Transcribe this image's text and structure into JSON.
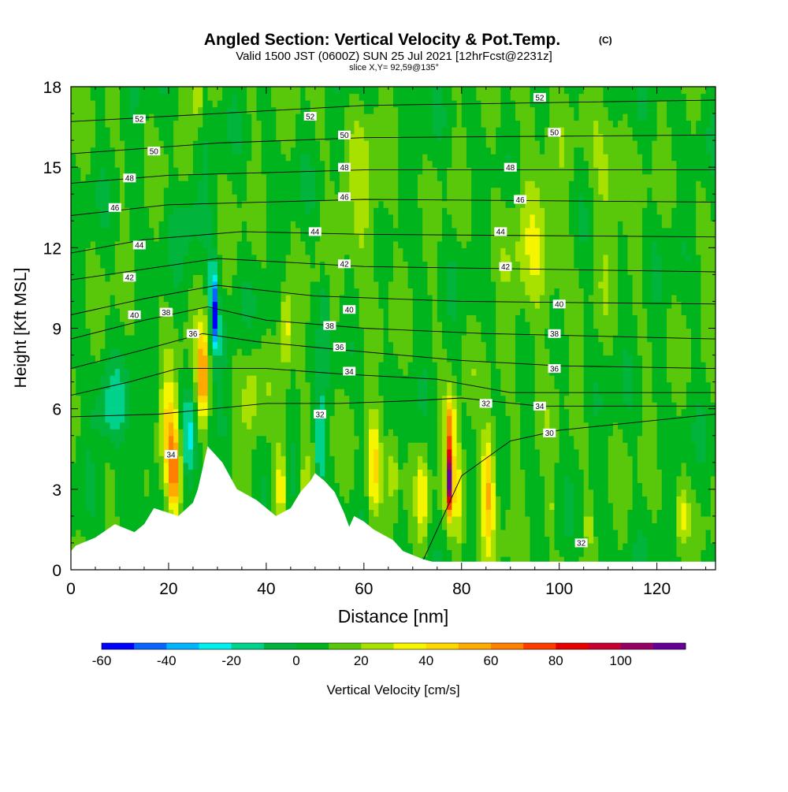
{
  "chart_data": {
    "type": "heatmap",
    "title": "Angled Section: Vertical Velocity & Pot.Temp.",
    "title_suffix": "(C)",
    "subtitle": "Valid 1500 JST (0600Z) SUN 25 Jul 2021 [12hrFcst@2231z]",
    "slice_label": "slice X,Y= 92,59@135°",
    "xlabel": "Distance [nm]",
    "ylabel": "Height [Kft MSL]",
    "xlim": [
      0,
      132
    ],
    "ylim": [
      0,
      18
    ],
    "x_ticks": [
      "0",
      "20",
      "40",
      "60",
      "80",
      "100",
      "120"
    ],
    "y_ticks": [
      "0",
      "3",
      "6",
      "9",
      "12",
      "15",
      "18"
    ],
    "grid": false,
    "colorbar": {
      "label": "Vertical Velocity [cm/s]",
      "ticks": [
        "-60",
        "-40",
        "-20",
        "0",
        "20",
        "40",
        "60",
        "80",
        "100"
      ],
      "bins": [
        {
          "from": -60,
          "to": -50,
          "color": "#0000ff"
        },
        {
          "from": -50,
          "to": -40,
          "color": "#0a64ff"
        },
        {
          "from": -40,
          "to": -30,
          "color": "#00b4ff"
        },
        {
          "from": -30,
          "to": -20,
          "color": "#00eeee"
        },
        {
          "from": -20,
          "to": -10,
          "color": "#00d28c"
        },
        {
          "from": -10,
          "to": 0,
          "color": "#00b43c"
        },
        {
          "from": 0,
          "to": 10,
          "color": "#00b41e"
        },
        {
          "from": 10,
          "to": 20,
          "color": "#5ac80a"
        },
        {
          "from": 20,
          "to": 30,
          "color": "#a8e000"
        },
        {
          "from": 30,
          "to": 40,
          "color": "#f5f500"
        },
        {
          "from": 40,
          "to": 50,
          "color": "#ffd700"
        },
        {
          "from": 50,
          "to": 60,
          "color": "#ffaa00"
        },
        {
          "from": 60,
          "to": 70,
          "color": "#ff8000"
        },
        {
          "from": 70,
          "to": 80,
          "color": "#ff3c00"
        },
        {
          "from": 80,
          "to": 90,
          "color": "#e60000"
        },
        {
          "from": 90,
          "to": 100,
          "color": "#c80032"
        },
        {
          "from": 100,
          "to": 110,
          "color": "#960064"
        },
        {
          "from": 110,
          "to": 120,
          "color": "#640096"
        }
      ]
    },
    "background_velocity": 8,
    "velocity_features": [
      {
        "x": 21,
        "z": 3.6,
        "wx": 1.4,
        "wz": 1.6,
        "v": 50
      },
      {
        "x": 20,
        "z": 5.5,
        "wx": 1.8,
        "wz": 2.0,
        "v": 30
      },
      {
        "x": 27,
        "z": 7.2,
        "wx": 1.2,
        "wz": 1.8,
        "v": 55
      },
      {
        "x": 29.5,
        "z": 9.5,
        "wx": 0.7,
        "wz": 1.0,
        "v": -55
      },
      {
        "x": 29,
        "z": 10.8,
        "wx": 0.9,
        "wz": 1.0,
        "v": -30
      },
      {
        "x": 25,
        "z": 13.2,
        "wx": 3.5,
        "wz": 1.3,
        "v": -12
      },
      {
        "x": 30,
        "z": 8.5,
        "wx": 2.5,
        "wz": 1.2,
        "v": -15
      },
      {
        "x": 24,
        "z": 5.0,
        "wx": 1.2,
        "wz": 1.5,
        "v": -25
      },
      {
        "x": 8,
        "z": 6.0,
        "wx": 3.5,
        "wz": 1.4,
        "v": -22
      },
      {
        "x": 14,
        "z": 4.2,
        "wx": 2.0,
        "wz": 1.8,
        "v": -12
      },
      {
        "x": 26,
        "z": 17.5,
        "wx": 0.8,
        "wz": 1.2,
        "v": 28
      },
      {
        "x": 43,
        "z": 3.2,
        "wx": 1.2,
        "wz": 1.6,
        "v": 32
      },
      {
        "x": 44,
        "z": 9.0,
        "wx": 1.2,
        "wz": 1.5,
        "v": 30
      },
      {
        "x": 51,
        "z": 4.6,
        "wx": 1.0,
        "wz": 2.2,
        "v": -28
      },
      {
        "x": 52,
        "z": 10.0,
        "wx": 0.8,
        "wz": 1.5,
        "v": -22
      },
      {
        "x": 48,
        "z": 3.0,
        "wx": 1.2,
        "wz": 1.5,
        "v": 22
      },
      {
        "x": 62,
        "z": 3.6,
        "wx": 1.5,
        "wz": 2.0,
        "v": 35
      },
      {
        "x": 66,
        "z": 3.8,
        "wx": 1.2,
        "wz": 1.8,
        "v": 22
      },
      {
        "x": 72,
        "z": 2.8,
        "wx": 1.0,
        "wz": 1.6,
        "v": 28
      },
      {
        "x": 77.6,
        "z": 3.4,
        "wx": 0.75,
        "wz": 1.3,
        "v": 105
      },
      {
        "x": 77.6,
        "z": 5.6,
        "wx": 1.0,
        "wz": 1.0,
        "v": 48
      },
      {
        "x": 79.5,
        "z": 3.0,
        "wx": 1.2,
        "wz": 2.2,
        "v": 28
      },
      {
        "x": 85.5,
        "z": 3.2,
        "wx": 1.5,
        "wz": 2.3,
        "v": 45
      },
      {
        "x": 98,
        "z": 2.3,
        "wx": 0.6,
        "wz": 0.9,
        "v": 25
      },
      {
        "x": 106,
        "z": 1.8,
        "wx": 0.5,
        "wz": 1.0,
        "v": 30
      },
      {
        "x": 125,
        "z": 2.0,
        "wx": 1.2,
        "wz": 1.2,
        "v": 25
      },
      {
        "x": 60,
        "z": 13.5,
        "wx": 5.0,
        "wz": 3.0,
        "v": 14
      },
      {
        "x": 95,
        "z": 12.0,
        "wx": 6.0,
        "wz": 4.0,
        "v": 15
      },
      {
        "x": 110,
        "z": 14.5,
        "wx": 3.0,
        "wz": 3.0,
        "v": 16
      },
      {
        "x": 37,
        "z": 6.5,
        "wx": 2.0,
        "wz": 2.0,
        "v": 15
      }
    ],
    "terrain_kft": [
      {
        "x": 0,
        "z": 0.7
      },
      {
        "x": 1,
        "z": 0.9
      },
      {
        "x": 5,
        "z": 1.2
      },
      {
        "x": 9,
        "z": 1.7
      },
      {
        "x": 13,
        "z": 1.4
      },
      {
        "x": 15,
        "z": 1.7
      },
      {
        "x": 16,
        "z": 2.0
      },
      {
        "x": 17,
        "z": 2.3
      },
      {
        "x": 22,
        "z": 2.0
      },
      {
        "x": 25,
        "z": 2.5
      },
      {
        "x": 26,
        "z": 3.0
      },
      {
        "x": 28,
        "z": 4.6
      },
      {
        "x": 31,
        "z": 4.0
      },
      {
        "x": 34,
        "z": 3.0
      },
      {
        "x": 38,
        "z": 2.6
      },
      {
        "x": 42,
        "z": 2.0
      },
      {
        "x": 45,
        "z": 2.3
      },
      {
        "x": 47,
        "z": 2.9
      },
      {
        "x": 49,
        "z": 3.3
      },
      {
        "x": 50,
        "z": 3.6
      },
      {
        "x": 52,
        "z": 3.3
      },
      {
        "x": 54,
        "z": 2.9
      },
      {
        "x": 56,
        "z": 2.1
      },
      {
        "x": 57,
        "z": 1.6
      },
      {
        "x": 58,
        "z": 2.0
      },
      {
        "x": 60,
        "z": 1.8
      },
      {
        "x": 62,
        "z": 1.5
      },
      {
        "x": 66,
        "z": 1.1
      },
      {
        "x": 68,
        "z": 0.7
      },
      {
        "x": 72,
        "z": 0.4
      },
      {
        "x": 74,
        "z": 0.3
      },
      {
        "x": 132,
        "z": 0.3
      }
    ],
    "isentropes": [
      {
        "label": "30",
        "points": [
          [
            72,
            0.3
          ],
          [
            80,
            3.5
          ],
          [
            90,
            4.8
          ],
          [
            100,
            5.2
          ],
          [
            132,
            5.8
          ]
        ]
      },
      {
        "label": "32",
        "points": [
          [
            0,
            5.7
          ],
          [
            18,
            5.8
          ],
          [
            40,
            6.2
          ],
          [
            55,
            6.2
          ],
          [
            70,
            6.3
          ],
          [
            80,
            6.4
          ],
          [
            96,
            6.1
          ],
          [
            132,
            6.1
          ]
        ]
      },
      {
        "label": "34",
        "points": [
          [
            0,
            6.5
          ],
          [
            12,
            7.0
          ],
          [
            22,
            7.5
          ],
          [
            40,
            7.5
          ],
          [
            55,
            7.3
          ],
          [
            75,
            7.1
          ],
          [
            90,
            6.6
          ],
          [
            132,
            6.6
          ]
        ]
      },
      {
        "label": "36",
        "points": [
          [
            0,
            7.5
          ],
          [
            15,
            8.2
          ],
          [
            27,
            8.8
          ],
          [
            38,
            8.5
          ],
          [
            55,
            8.2
          ],
          [
            80,
            7.8
          ],
          [
            100,
            7.6
          ],
          [
            132,
            7.5
          ]
        ]
      },
      {
        "label": "38",
        "points": [
          [
            0,
            8.6
          ],
          [
            15,
            9.3
          ],
          [
            28,
            9.8
          ],
          [
            40,
            9.3
          ],
          [
            60,
            9.0
          ],
          [
            85,
            8.8
          ],
          [
            132,
            8.6
          ]
        ]
      },
      {
        "label": "40",
        "points": [
          [
            0,
            9.5
          ],
          [
            15,
            10.1
          ],
          [
            30,
            10.6
          ],
          [
            50,
            10.2
          ],
          [
            80,
            10.0
          ],
          [
            132,
            9.9
          ]
        ]
      },
      {
        "label": "42",
        "points": [
          [
            0,
            10.8
          ],
          [
            15,
            11.2
          ],
          [
            30,
            11.6
          ],
          [
            60,
            11.3
          ],
          [
            132,
            11.1
          ]
        ]
      },
      {
        "label": "44",
        "points": [
          [
            0,
            11.8
          ],
          [
            15,
            12.3
          ],
          [
            35,
            12.6
          ],
          [
            60,
            12.5
          ],
          [
            132,
            12.4
          ]
        ]
      },
      {
        "label": "46",
        "points": [
          [
            0,
            13.2
          ],
          [
            20,
            13.6
          ],
          [
            60,
            13.8
          ],
          [
            132,
            13.7
          ]
        ]
      },
      {
        "label": "48",
        "points": [
          [
            0,
            14.4
          ],
          [
            20,
            14.7
          ],
          [
            60,
            14.9
          ],
          [
            132,
            14.9
          ]
        ]
      },
      {
        "label": "50",
        "points": [
          [
            0,
            15.5
          ],
          [
            30,
            15.9
          ],
          [
            60,
            16.1
          ],
          [
            132,
            16.2
          ]
        ]
      },
      {
        "label": "52",
        "points": [
          [
            0,
            16.7
          ],
          [
            30,
            17.0
          ],
          [
            60,
            17.3
          ],
          [
            132,
            17.5
          ]
        ]
      }
    ],
    "contour_labels": [
      {
        "text": "52",
        "x": 14,
        "z": 16.8
      },
      {
        "text": "50",
        "x": 17,
        "z": 15.6
      },
      {
        "text": "48",
        "x": 12,
        "z": 14.6
      },
      {
        "text": "46",
        "x": 9,
        "z": 13.5
      },
      {
        "text": "44",
        "x": 14,
        "z": 12.1
      },
      {
        "text": "42",
        "x": 12,
        "z": 10.9
      },
      {
        "text": "40",
        "x": 13,
        "z": 9.5
      },
      {
        "text": "38",
        "x": 19.5,
        "z": 9.6
      },
      {
        "text": "36",
        "x": 25,
        "z": 8.8
      },
      {
        "text": "34",
        "x": 20.5,
        "z": 4.3
      },
      {
        "text": "52",
        "x": 49,
        "z": 16.9
      },
      {
        "text": "50",
        "x": 56,
        "z": 16.2
      },
      {
        "text": "48",
        "x": 56,
        "z": 15.0
      },
      {
        "text": "46",
        "x": 56,
        "z": 13.9
      },
      {
        "text": "44",
        "x": 50,
        "z": 12.6
      },
      {
        "text": "42",
        "x": 56,
        "z": 11.4
      },
      {
        "text": "40",
        "x": 57,
        "z": 9.7
      },
      {
        "text": "38",
        "x": 53,
        "z": 9.1
      },
      {
        "text": "36",
        "x": 55,
        "z": 8.3
      },
      {
        "text": "34",
        "x": 57,
        "z": 7.4
      },
      {
        "text": "32",
        "x": 51,
        "z": 5.8
      },
      {
        "text": "52",
        "x": 96,
        "z": 17.6
      },
      {
        "text": "50",
        "x": 99,
        "z": 16.3
      },
      {
        "text": "48",
        "x": 90,
        "z": 15.0
      },
      {
        "text": "46",
        "x": 92,
        "z": 13.8
      },
      {
        "text": "44",
        "x": 88,
        "z": 12.6
      },
      {
        "text": "42",
        "x": 89,
        "z": 11.3
      },
      {
        "text": "40",
        "x": 100,
        "z": 9.9
      },
      {
        "text": "38",
        "x": 99,
        "z": 8.8
      },
      {
        "text": "36",
        "x": 99,
        "z": 7.5
      },
      {
        "text": "34",
        "x": 96,
        "z": 6.1
      },
      {
        "text": "32",
        "x": 85,
        "z": 6.2
      },
      {
        "text": "30",
        "x": 98,
        "z": 5.1
      },
      {
        "text": "32",
        "x": 104.5,
        "z": 1.0
      }
    ]
  }
}
